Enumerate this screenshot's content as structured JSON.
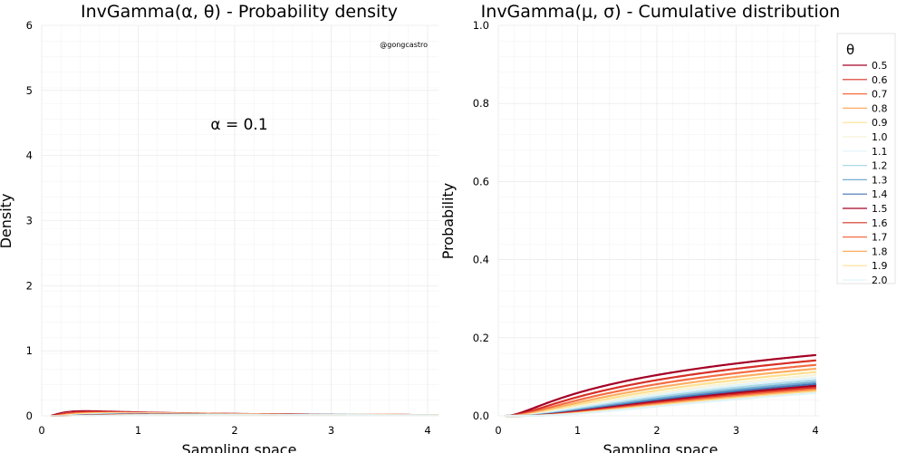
{
  "chart_data": [
    {
      "type": "line",
      "title": "InvGamma(α, θ) - Probability density",
      "xlabel": "Sampling space",
      "ylabel": "Density",
      "xlim": [
        0,
        4
      ],
      "ylim": [
        0,
        6
      ],
      "xticks": [
        "0",
        "1",
        "2",
        "3",
        "4"
      ],
      "yticks": [
        "0",
        "1",
        "2",
        "3",
        "4",
        "5",
        "6"
      ],
      "grid": true,
      "annotation": "α = 0.1",
      "credit": "@gongcastro",
      "alpha": 0.1,
      "theta": [
        0.5,
        0.6,
        0.7,
        0.8,
        0.9,
        1.0,
        1.1,
        1.2,
        1.3,
        1.4,
        1.5,
        1.6,
        1.7,
        1.8,
        1.9,
        2.0
      ]
    },
    {
      "type": "line",
      "title": "InvGamma(μ, σ) - Cumulative distribution",
      "xlabel": "Sampling space",
      "ylabel": "Probability",
      "xlim": [
        0,
        4
      ],
      "ylim": [
        0,
        1
      ],
      "xticks": [
        "0",
        "1",
        "2",
        "3",
        "4"
      ],
      "yticks": [
        "0.0",
        "0.2",
        "0.4",
        "0.6",
        "0.8",
        "1.0"
      ],
      "grid": true,
      "legend_title": "θ",
      "legend_position": "top-right",
      "legend": [
        "0.5",
        "0.6",
        "0.7",
        "0.8",
        "0.9",
        "1.0",
        "1.1",
        "1.2",
        "1.3",
        "1.4",
        "1.5",
        "1.6",
        "1.7",
        "1.8",
        "1.9",
        "2.0"
      ],
      "alpha": 0.1,
      "theta": [
        0.5,
        0.6,
        0.7,
        0.8,
        0.9,
        1.0,
        1.1,
        1.2,
        1.3,
        1.4,
        1.5,
        1.6,
        1.7,
        1.8,
        1.9,
        2.0
      ],
      "colors": [
        "#9e0142",
        "#d53e4f",
        "#f46d43",
        "#fdae61",
        "#fee08b",
        "#ffffbf",
        "#e6f598",
        "#abdda4",
        "#66c2a5",
        "#3288bd",
        "#5e4fa2",
        "#9e0142",
        "#d53e4f",
        "#f46d43",
        "#fdae61",
        "#fee08b"
      ]
    }
  ],
  "legend_colors": [
    "#a50026",
    "#d73027",
    "#f46d43",
    "#fdae61",
    "#fee090",
    "#f7f3d6",
    "#e0f3f8",
    "#abd9e9",
    "#74add1",
    "#4575b4",
    "#a50026",
    "#d73027",
    "#f46d43",
    "#fdae61",
    "#fee090",
    "#e0f3f8"
  ]
}
